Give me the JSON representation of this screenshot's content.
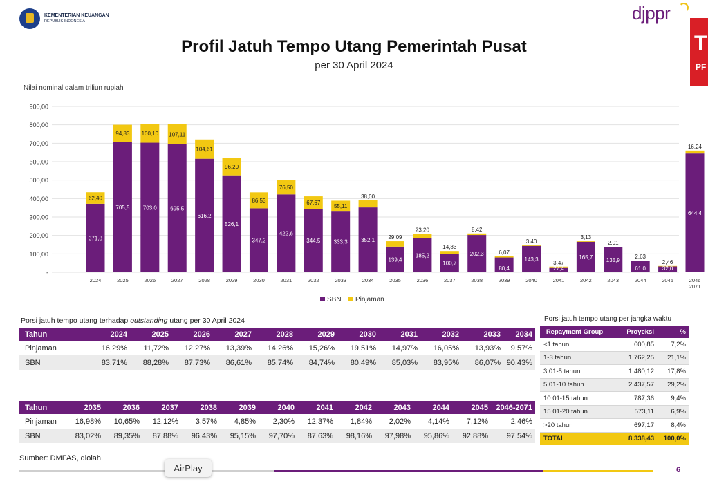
{
  "header": {
    "ministry_line1": "KEMENTERIAN KEUANGAN",
    "ministry_line2": "REPUBLIK INDONESIA",
    "brand": "djppr",
    "title": "Profil Jatuh Tempo Utang Pemerintah Pusat",
    "subtitle": "per 30 April 2024"
  },
  "colors": {
    "sbn": "#6b1d7a",
    "pinjaman": "#f2c812",
    "header_bg": "#6b1d7a",
    "total_bg": "#f2c812"
  },
  "chart_data": {
    "type": "bar",
    "stacked": true,
    "ylabel": "Nilai nominal dalam triliun rupiah",
    "ylim": [
      0,
      900
    ],
    "y_ticks": [
      "-",
      "100,00",
      "200,00",
      "300,00",
      "400,00",
      "500,00",
      "600,00",
      "700,00",
      "800,00",
      "900,00"
    ],
    "grid": true,
    "legend_position": "bottom",
    "categories": [
      "2024",
      "2025",
      "2026",
      "2027",
      "2028",
      "2029",
      "2030",
      "2031",
      "2032",
      "2033",
      "2034",
      "2035",
      "2036",
      "2037",
      "2038",
      "2039",
      "2040",
      "2041",
      "2042",
      "2043",
      "2044",
      "2045",
      "2046-2071"
    ],
    "category_labels": [
      "2024",
      "2025",
      "2026",
      "2027",
      "2028",
      "2029",
      "2030",
      "2031",
      "2032",
      "2033",
      "2034",
      "2035",
      "2036",
      "2037",
      "2038",
      "2039",
      "2040",
      "2041",
      "2042",
      "2043",
      "2044",
      "2045",
      "2046\n2071"
    ],
    "series": [
      {
        "name": "SBN",
        "values": [
          371.8,
          705.5,
          703.0,
          695.5,
          616.2,
          526.1,
          347.2,
          422.6,
          344.5,
          333.3,
          352.1,
          139.4,
          185.2,
          100.7,
          202.3,
          80.4,
          143.3,
          27.4,
          165.7,
          135.9,
          61.0,
          32.0,
          644.4
        ],
        "labels": [
          "371,8",
          "705,5",
          "703,0",
          "695,5",
          "616,2",
          "526,1",
          "347,2",
          "422,6",
          "344,5",
          "333,3",
          "352,1",
          "139,4",
          "185,2",
          "100,7",
          "202,3",
          "80,4",
          "143,3",
          "27,4",
          "165,7",
          "135,9",
          "61,0",
          "32,0",
          "644,4"
        ]
      },
      {
        "name": "Pinjaman",
        "values": [
          62.4,
          94.83,
          100.1,
          107.11,
          104.61,
          96.2,
          86.53,
          76.5,
          67.67,
          55.11,
          38.0,
          29.09,
          23.2,
          14.83,
          8.42,
          6.07,
          3.4,
          3.47,
          3.13,
          2.01,
          2.63,
          2.46,
          16.24
        ],
        "labels": [
          "62,40",
          "94,83",
          "100,10",
          "107,11",
          "104,61",
          "96,20",
          "86,53",
          "76,50",
          "67,67",
          "55,11",
          "38,00",
          "29,09",
          "23,20",
          "14,83",
          "8,42",
          "6,07",
          "3,40",
          "3,47",
          "3,13",
          "2,01",
          "2,63",
          "2,46",
          "16,24"
        ]
      }
    ]
  },
  "porsi_table": {
    "title_prefix": "Porsi jatuh tempo utang terhadap ",
    "title_em": "outstanding",
    "title_suffix": " utang per 30 April 2024",
    "part1": {
      "header": [
        "Tahun",
        "2024",
        "2025",
        "2026",
        "2027",
        "2028",
        "2029",
        "2030",
        "2031",
        "2032",
        "2033",
        "2034"
      ],
      "rows": [
        [
          "Pinjaman",
          "16,29%",
          "11,72%",
          "12,27%",
          "13,39%",
          "14,26%",
          "15,26%",
          "19,51%",
          "14,97%",
          "16,05%",
          "13,93%",
          "9,57%"
        ],
        [
          "SBN",
          "83,71%",
          "88,28%",
          "87,73%",
          "86,61%",
          "85,74%",
          "84,74%",
          "80,49%",
          "85,03%",
          "83,95%",
          "86,07%",
          "90,43%"
        ]
      ]
    },
    "part2": {
      "header": [
        "Tahun",
        "2035",
        "2036",
        "2037",
        "2038",
        "2039",
        "2040",
        "2041",
        "2042",
        "2043",
        "2044",
        "2045",
        "2046-2071"
      ],
      "rows": [
        [
          "Pinjaman",
          "16,98%",
          "10,65%",
          "12,12%",
          "3,57%",
          "4,85%",
          "2,30%",
          "12,37%",
          "1,84%",
          "2,02%",
          "4,14%",
          "7,12%",
          "2,46%"
        ],
        [
          "SBN",
          "83,02%",
          "89,35%",
          "87,88%",
          "96,43%",
          "95,15%",
          "97,70%",
          "87,63%",
          "98,16%",
          "97,98%",
          "95,86%",
          "92,88%",
          "97,54%"
        ]
      ]
    }
  },
  "repayment_table": {
    "title": "Porsi jatuh tempo utang per jangka waktu",
    "header": [
      "Repayment Group",
      "Proyeksi",
      "%"
    ],
    "rows": [
      [
        "<1 tahun",
        "600,85",
        "7,2%"
      ],
      [
        "1-3 tahun",
        "1.762,25",
        "21,1%"
      ],
      [
        "3.01-5 tahun",
        "1.480,12",
        "17,8%"
      ],
      [
        "5.01-10 tahun",
        "2.437,57",
        "29,2%"
      ],
      [
        "10.01-15 tahun",
        "787,36",
        "9,4%"
      ],
      [
        "15.01-20 tahun",
        "573,11",
        "6,9%"
      ],
      [
        ">20 tahun",
        "697,17",
        "8,4%"
      ]
    ],
    "total": [
      "TOTAL",
      "8.338,43",
      "100,0%"
    ]
  },
  "footer": {
    "source": "Sumber: DMFAS, diolah.",
    "airplay": "AirPlay",
    "page_number": "6"
  }
}
